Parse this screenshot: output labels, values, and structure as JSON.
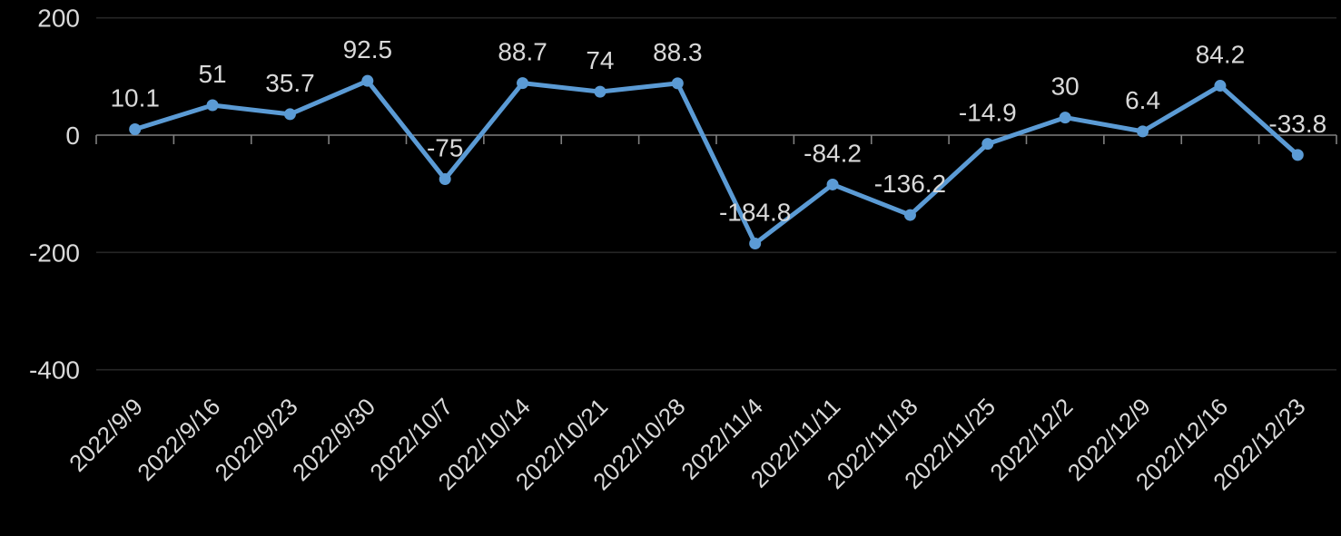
{
  "chart": {
    "background_color": "#000000"
  },
  "chart_data": {
    "type": "line",
    "title": "",
    "xlabel": "",
    "ylabel": "",
    "legend_position": "none",
    "grid": true,
    "marker": "circle",
    "categories": [
      "2022/9/9",
      "2022/9/16",
      "2022/9/23",
      "2022/9/30",
      "2022/10/7",
      "2022/10/14",
      "2022/10/21",
      "2022/10/28",
      "2022/11/4",
      "2022/11/11",
      "2022/11/18",
      "2022/11/25",
      "2022/12/2",
      "2022/12/9",
      "2022/12/16",
      "2022/12/23"
    ],
    "series": [
      {
        "name": "value",
        "color": "#5B9BD5",
        "values": [
          10.1,
          51,
          35.7,
          92.5,
          -75,
          88.7,
          74,
          88.3,
          -184.8,
          -84.2,
          -136.2,
          -14.9,
          30,
          6.4,
          84.2,
          -33.8
        ],
        "point_labels": [
          "10.1",
          "51",
          "35.7",
          "92.5",
          "-75",
          "88.7",
          "74",
          "88.3",
          "-184.8",
          "-84.2",
          "-136.2",
          "-14.9",
          "30",
          "6.4",
          "84.2",
          "-33.8"
        ]
      }
    ],
    "y_axis": {
      "tick_values": [
        200,
        0,
        -200,
        -400
      ],
      "tick_labels": [
        "200",
        "0",
        "-200",
        "-400"
      ],
      "ylim": [
        -400,
        200
      ]
    },
    "x_axis": {
      "label_rotation_deg": -45
    },
    "colors": {
      "text": "#D9D9D9",
      "axis_line": "#7F7F7F",
      "gridline": "#262626",
      "series": "#5B9BD5"
    }
  }
}
